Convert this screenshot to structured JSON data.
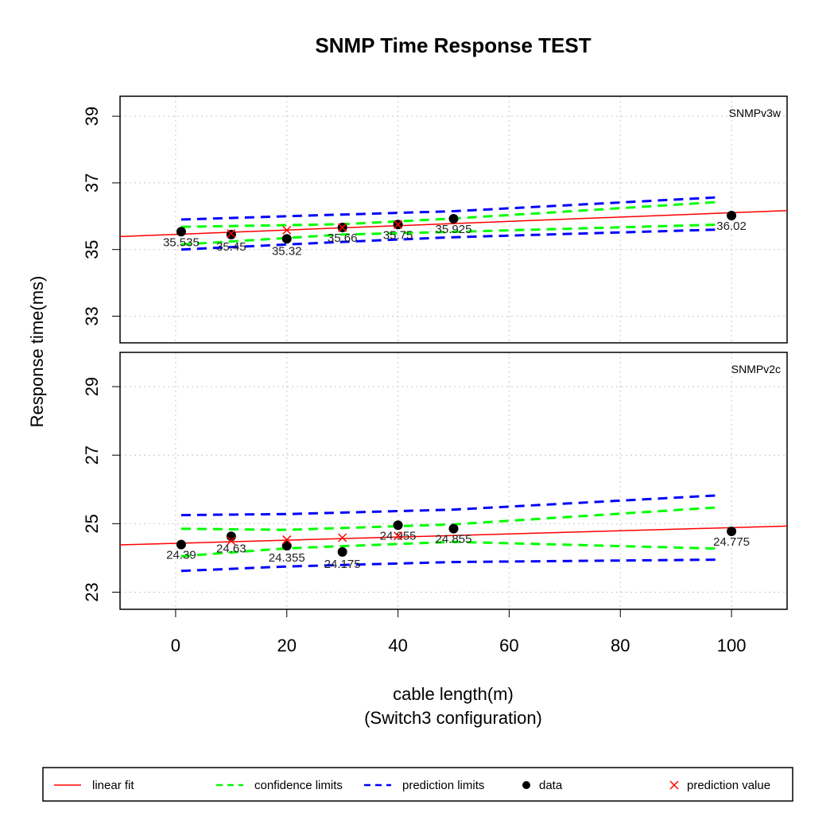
{
  "title": "SNMP Time Response TEST",
  "xlabel": "cable length(m)",
  "xlabel2": "(Switch3 configuration)",
  "ylabel": "Response time(ms)",
  "legend": {
    "items": [
      {
        "label": "linear fit",
        "kind": "line",
        "color": "#ff0000",
        "dash": "solid"
      },
      {
        "label": "confidence limits",
        "kind": "line",
        "color": "#00ff00",
        "dash": "dashed"
      },
      {
        "label": "prediction limits",
        "kind": "line",
        "color": "#0000ff",
        "dash": "dashed"
      },
      {
        "label": "data",
        "kind": "dot",
        "color": "#000000"
      },
      {
        "label": "prediction value",
        "kind": "cross",
        "color": "#ff0000"
      }
    ]
  },
  "colors": {
    "fit": "#ff0000",
    "confidence": "#00ff00",
    "prediction": "#0000ff",
    "data": "#000000",
    "prediction_value": "#ff0000",
    "grid": "#c8c8c8"
  },
  "chart_data": {
    "type": "scatter",
    "x_ticks": [
      "0",
      "20",
      "40",
      "60",
      "80",
      "100"
    ],
    "xlim": [
      -10,
      110
    ],
    "grid": true,
    "legend_position": "bottom",
    "panels": [
      {
        "label": "SNMPv3w",
        "ylim": [
          32.2,
          39.6
        ],
        "y_ticks": [
          "33",
          "35",
          "37",
          "39"
        ],
        "x": [
          1,
          10,
          20,
          30,
          40,
          50,
          100
        ],
        "values": [
          35.535,
          35.45,
          35.32,
          35.66,
          35.75,
          35.925,
          36.02
        ],
        "data_labels": [
          "35.535",
          "35.45",
          "35.32",
          "35.66",
          "35.75",
          "35.925",
          "36.02"
        ],
        "prediction_x": [
          10,
          20,
          30,
          40
        ],
        "prediction_values": [
          35.48,
          35.58,
          35.66,
          35.75
        ],
        "fit": {
          "x": [
            -10,
            110
          ],
          "y": [
            35.39,
            36.17
          ]
        },
        "confidence_upper": {
          "x": [
            1,
            30,
            50,
            98
          ],
          "y": [
            35.68,
            35.76,
            35.93,
            36.43
          ]
        },
        "confidence_lower": {
          "x": [
            1,
            30,
            50,
            98
          ],
          "y": [
            35.15,
            35.45,
            35.53,
            35.75
          ]
        },
        "prediction_upper": {
          "x": [
            1,
            30,
            50,
            98
          ],
          "y": [
            35.9,
            36.05,
            36.15,
            36.57
          ]
        },
        "prediction_lower": {
          "x": [
            1,
            30,
            50,
            98
          ],
          "y": [
            35.0,
            35.23,
            35.37,
            35.6
          ]
        }
      },
      {
        "label": "SNMPv2c",
        "ylim": [
          22.5,
          30.0
        ],
        "y_ticks": [
          "23",
          "25",
          "27",
          "29"
        ],
        "x": [
          1,
          10,
          20,
          30,
          40,
          50,
          100
        ],
        "values": [
          24.39,
          24.63,
          24.355,
          24.175,
          24.955,
          24.855,
          24.775
        ],
        "data_labels": [
          "24.39",
          "24.63",
          "24.355",
          "24.175",
          "24.955",
          "24.855",
          "24.775"
        ],
        "prediction_x": [
          10,
          20,
          30,
          40
        ],
        "prediction_values": [
          24.5,
          24.53,
          24.59,
          24.64
        ],
        "fit": {
          "x": [
            -10,
            110
          ],
          "y": [
            24.38,
            24.93
          ]
        },
        "confidence_upper": {
          "x": [
            1,
            20,
            50,
            98
          ],
          "y": [
            24.85,
            24.82,
            24.98,
            25.48
          ]
        },
        "confidence_lower": {
          "x": [
            1,
            20,
            50,
            98
          ],
          "y": [
            24.05,
            24.28,
            24.47,
            24.27
          ]
        },
        "prediction_upper": {
          "x": [
            1,
            20,
            50,
            98
          ],
          "y": [
            25.25,
            25.28,
            25.41,
            25.83
          ]
        },
        "prediction_lower": {
          "x": [
            1,
            20,
            50,
            98
          ],
          "y": [
            23.62,
            23.75,
            23.88,
            23.95
          ]
        }
      }
    ]
  }
}
